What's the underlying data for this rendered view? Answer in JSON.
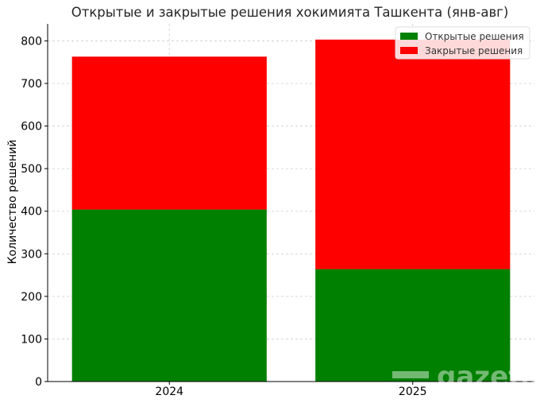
{
  "chart_data": {
    "type": "bar",
    "stacked": true,
    "title": "Открытые и закрытые решения хокимията Ташкента (янв-авг)",
    "xlabel": "",
    "ylabel": "Количество решений",
    "categories": [
      "2024",
      "2025"
    ],
    "series": [
      {
        "name": "Открытые решения",
        "color": "#008000",
        "values": [
          404,
          264
        ]
      },
      {
        "name": "Закрытые решения",
        "color": "#ff0000",
        "values": [
          359,
          539
        ]
      }
    ],
    "ylim": [
      0,
      840
    ],
    "yticks": [
      0,
      100,
      200,
      300,
      400,
      500,
      600,
      700,
      800
    ],
    "grid": true,
    "legend_position": "top-right"
  },
  "watermark": "gazeta"
}
